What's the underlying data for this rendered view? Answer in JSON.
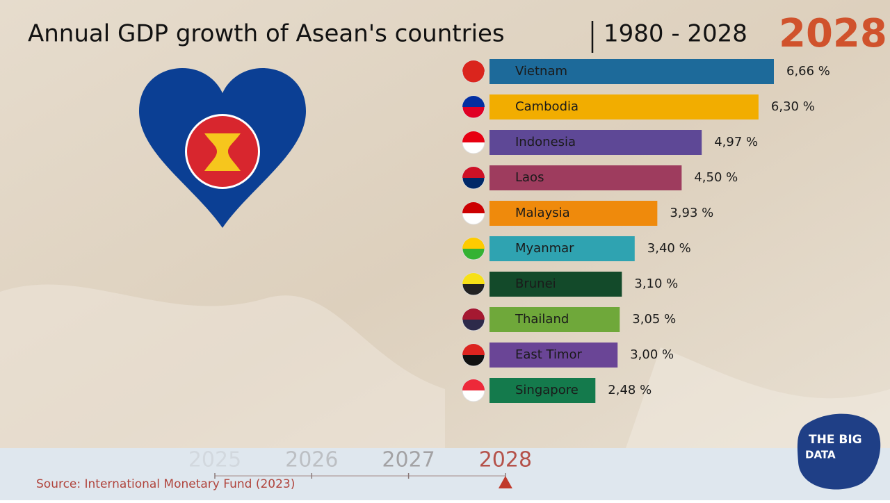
{
  "chart_data": {
    "type": "bar",
    "orientation": "horizontal",
    "title": "Annual GDP growth of Asean's countries",
    "subtitle": "1980 - 2028",
    "current_year": 2028,
    "categories": [
      "Vietnam",
      "Cambodia",
      "Indonesia",
      "Laos",
      "Malaysia",
      "Myanmar",
      "Brunei",
      "Thailand",
      "East Timor",
      "Singapore"
    ],
    "values": [
      6.66,
      6.3,
      4.97,
      4.5,
      3.93,
      3.4,
      3.1,
      3.05,
      3.0,
      2.48
    ],
    "value_labels": [
      "6,66 %",
      "6,30 %",
      "4,97 %",
      "4,50 %",
      "3,93 %",
      "3,40 %",
      "3,10 %",
      "3,05 %",
      "3,00 %",
      "2,48 %"
    ],
    "colors": [
      "#1d6a9a",
      "#f2ad00",
      "#5e4896",
      "#9e3c5e",
      "#ef8a0c",
      "#2fa3b1",
      "#134a2a",
      "#6fa83a",
      "#6a4596",
      "#147a4c"
    ],
    "timeline": [
      2025,
      2026,
      2027,
      2028
    ],
    "source": "Source: International Monetary Fund (2023)",
    "logo": {
      "line1": "THE BIG",
      "line2": "DATA"
    }
  }
}
